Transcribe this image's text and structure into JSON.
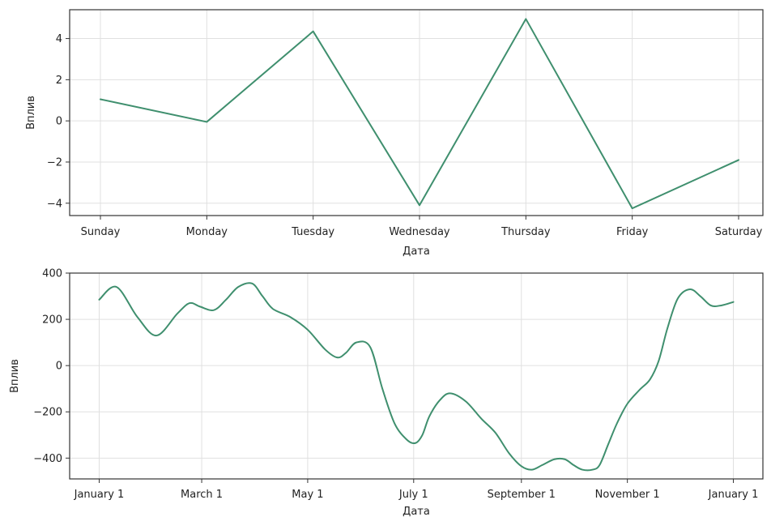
{
  "chart_data": [
    {
      "type": "line",
      "xlabel": "Дата",
      "ylabel": "Вплив",
      "grid": true,
      "color": "#3f8f6e",
      "categories": [
        "Sunday",
        "Monday",
        "Tuesday",
        "Wednesday",
        "Thursday",
        "Friday",
        "Saturday"
      ],
      "values": [
        1.05,
        -0.05,
        4.35,
        -4.1,
        4.95,
        -4.25,
        -1.9
      ],
      "ylim": [
        -4.6,
        5.4
      ],
      "yticks": [
        -4,
        -2,
        0,
        2,
        4
      ],
      "ytick_labels": [
        "−4",
        "−2",
        "0",
        "2",
        "4"
      ]
    },
    {
      "type": "line",
      "xlabel": "Дата",
      "ylabel": "Вплив",
      "grid": true,
      "color": "#3f8f6e",
      "x_ticks": [
        0,
        59,
        120,
        181,
        243,
        304,
        365
      ],
      "x_tick_labels": [
        "January 1",
        "March 1",
        "May 1",
        "July 1",
        "September 1",
        "November 1",
        "January 1"
      ],
      "xlim": [
        -17,
        382
      ],
      "ylim": [
        -490,
        400
      ],
      "yticks": [
        -400,
        -200,
        0,
        200,
        400
      ],
      "ytick_labels": [
        "−400",
        "−200",
        "0",
        "200",
        "400"
      ],
      "x": [
        0,
        10,
        22,
        33,
        45,
        52,
        58,
        66,
        73,
        80,
        88,
        94,
        100,
        110,
        120,
        130,
        137,
        142,
        148,
        156,
        163,
        170,
        177,
        182,
        186,
        190,
        196,
        202,
        211,
        220,
        228,
        236,
        243,
        249,
        255,
        262,
        268,
        273,
        278,
        284,
        288,
        293,
        298,
        304,
        311,
        317,
        322,
        327,
        333,
        340,
        346,
        352,
        358,
        365
      ],
      "y": [
        285,
        340,
        210,
        130,
        225,
        270,
        255,
        240,
        285,
        340,
        355,
        300,
        245,
        210,
        155,
        70,
        35,
        55,
        100,
        80,
        -100,
        -250,
        -320,
        -335,
        -300,
        -220,
        -150,
        -120,
        -155,
        -230,
        -290,
        -380,
        -435,
        -450,
        -430,
        -405,
        -405,
        -430,
        -450,
        -450,
        -430,
        -340,
        -250,
        -165,
        -105,
        -60,
        20,
        160,
        290,
        330,
        300,
        260,
        260,
        275
      ]
    }
  ]
}
